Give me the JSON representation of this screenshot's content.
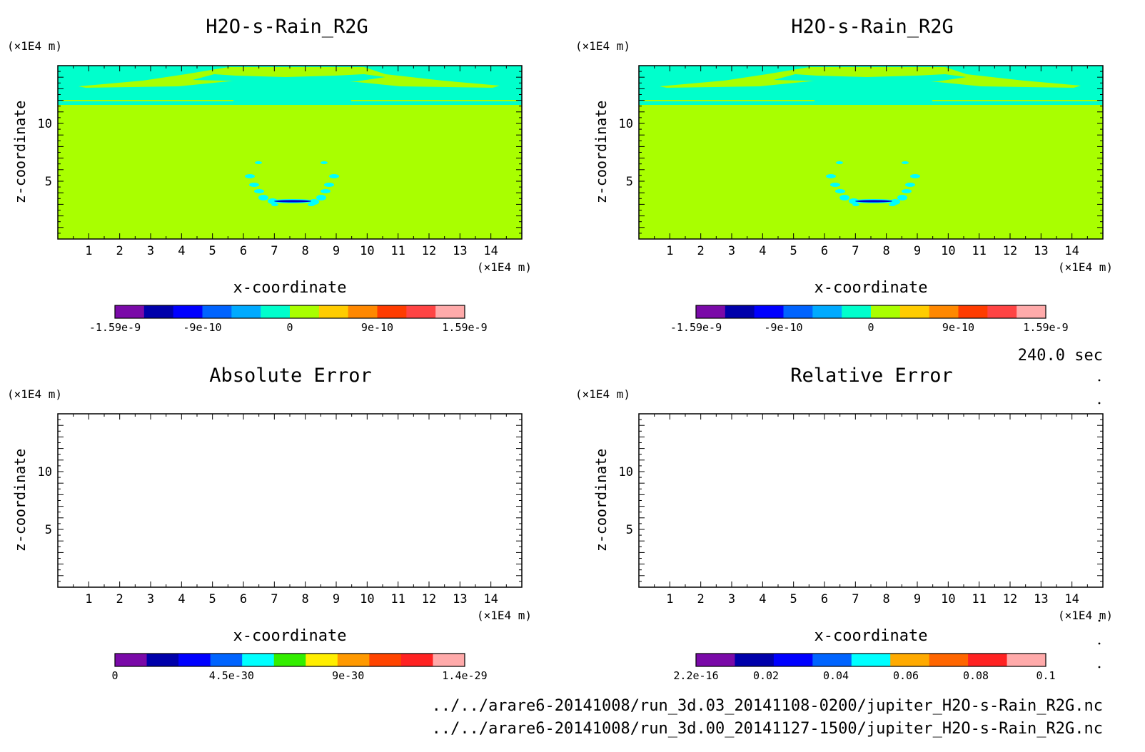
{
  "chart_data": [
    {
      "type": "heatmap",
      "title": "H2O-s-Rain_R2G",
      "xlabel": "x-coordinate",
      "ylabel": "z-coordinate",
      "x_unit": "(×1E4 m)",
      "y_unit": "(×1E4 m)",
      "xlim": [
        0,
        15
      ],
      "ylim": [
        0,
        15
      ],
      "x_ticks": [
        1,
        2,
        3,
        4,
        5,
        6,
        7,
        8,
        9,
        10,
        11,
        12,
        13,
        14
      ],
      "y_ticks": [
        5,
        10
      ],
      "colorbar": {
        "colors": [
          "#7a0aa8",
          "#0000aa",
          "#0000ff",
          "#0064ff",
          "#00aaff",
          "#00ffcc",
          "#a9ff00",
          "#ffcc00",
          "#ff8800",
          "#ff3c00",
          "#ff4444",
          "#ffaaaa"
        ],
        "labels": [
          "-1.59e-9",
          "-9e-10",
          "0",
          "9e-10",
          "1.59e-9"
        ]
      }
    },
    {
      "type": "heatmap",
      "title": "H2O-s-Rain_R2G",
      "xlabel": "x-coordinate",
      "ylabel": "z-coordinate",
      "x_unit": "(×1E4 m)",
      "y_unit": "(×1E4 m)",
      "xlim": [
        0,
        15
      ],
      "ylim": [
        0,
        15
      ],
      "x_ticks": [
        1,
        2,
        3,
        4,
        5,
        6,
        7,
        8,
        9,
        10,
        11,
        12,
        13,
        14
      ],
      "y_ticks": [
        5,
        10
      ],
      "colorbar": {
        "colors": [
          "#7a0aa8",
          "#0000aa",
          "#0000ff",
          "#0064ff",
          "#00aaff",
          "#00ffcc",
          "#a9ff00",
          "#ffcc00",
          "#ff8800",
          "#ff3c00",
          "#ff4444",
          "#ffaaaa"
        ],
        "labels": [
          "-1.59e-9",
          "-9e-10",
          "0",
          "9e-10",
          "1.59e-9"
        ]
      }
    },
    {
      "type": "heatmap",
      "title": "Absolute Error",
      "xlabel": "x-coordinate",
      "ylabel": "z-coordinate",
      "x_unit": "(×1E4 m)",
      "y_unit": "(×1E4 m)",
      "xlim": [
        0,
        15
      ],
      "ylim": [
        0,
        15
      ],
      "x_ticks": [
        1,
        2,
        3,
        4,
        5,
        6,
        7,
        8,
        9,
        10,
        11,
        12,
        13,
        14
      ],
      "y_ticks": [
        5,
        10
      ],
      "colorbar": {
        "colors": [
          "#7a0aa8",
          "#0000aa",
          "#0000ff",
          "#0064ff",
          "#00ffff",
          "#33ee00",
          "#ffee00",
          "#ff9900",
          "#ff4400",
          "#ff2222",
          "#ffaaaa"
        ],
        "labels": [
          "0",
          "4.5e-30",
          "9e-30",
          "1.4e-29"
        ]
      }
    },
    {
      "type": "heatmap",
      "title": "Relative Error",
      "xlabel": "x-coordinate",
      "ylabel": "z-coordinate",
      "x_unit": "(×1E4 m)",
      "y_unit": "(×1E4 m)",
      "xlim": [
        0,
        15
      ],
      "ylim": [
        0,
        15
      ],
      "x_ticks": [
        1,
        2,
        3,
        4,
        5,
        6,
        7,
        8,
        9,
        10,
        11,
        12,
        13,
        14
      ],
      "y_ticks": [
        5,
        10
      ],
      "colorbar": {
        "colors": [
          "#7a0aa8",
          "#0000aa",
          "#0000ff",
          "#0064ff",
          "#00ffff",
          "#ffaa00",
          "#ff6600",
          "#ff2222",
          "#ffaaaa"
        ],
        "labels": [
          "2.2e-16",
          "0.02",
          "0.04",
          "0.06",
          "0.08",
          "0.1"
        ]
      }
    }
  ],
  "time_label": "240.0 sec",
  "files": [
    "../../arare6-20141008/run_3d.03_20141108-0200/jupiter_H2O-s-Rain_R2G.nc",
    "../../arare6-20141008/run_3d.00_20141127-1500/jupiter_H2O-s-Rain_R2G.nc"
  ],
  "colors": {
    "field_background": "#a9ff00",
    "upper_layer": "#00ffcc",
    "cloud_patches": "#00ffff",
    "min_band": "#0000cc"
  }
}
